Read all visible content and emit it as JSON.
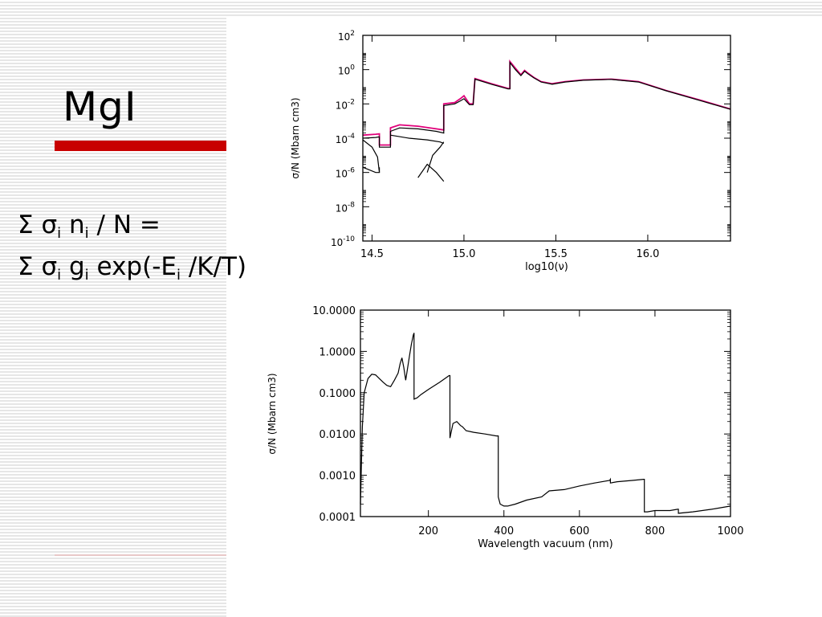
{
  "slide": {
    "title": "MgI",
    "formula": {
      "line1": {
        "sum": "Σ",
        "sigma": "σ",
        "sub1": "i",
        "n": "n",
        "sub2": "i",
        "rest": "/ N ="
      },
      "line2": {
        "sum": "Σ",
        "sigma": "σ",
        "sub1": "i",
        "g": "g",
        "sub2": "i",
        "exp": "exp(-E",
        "sub3": "i",
        "rest": "/K/T)"
      }
    },
    "colors": {
      "accent_bar": "#c80000",
      "curve_main": "#e0007a",
      "curve_dark": "#000000"
    }
  },
  "chart_data": [
    {
      "type": "line",
      "title": "",
      "xlabel": "log10(ν)",
      "ylabel": "σ/N (Mbarn cm3)",
      "xlim": [
        14.45,
        16.45
      ],
      "ylim": [
        1e-10,
        100
      ],
      "yscale": "log",
      "xticks": [
        14.5,
        15.0,
        15.5,
        16.0
      ],
      "xtick_labels": [
        "14.5",
        "15.0",
        "15.5",
        "16.0"
      ],
      "yticks": [
        1e-10,
        1e-08,
        1e-06,
        0.0001,
        0.01,
        1,
        100
      ],
      "ytick_labels": [
        {
          "base": "10",
          "exp": "-10"
        },
        {
          "base": "10",
          "exp": "-8"
        },
        {
          "base": "10",
          "exp": "-6"
        },
        {
          "base": "10",
          "exp": "-4"
        },
        {
          "base": "10",
          "exp": "-2"
        },
        {
          "base": "10",
          "exp": "0"
        },
        {
          "base": "10",
          "exp": "2"
        }
      ],
      "grid": false,
      "series": [
        {
          "color": "#e0007a",
          "x": [
            14.45,
            14.52,
            14.54,
            14.54,
            14.58,
            14.6,
            14.6,
            14.65,
            14.75,
            14.85,
            14.89,
            14.89,
            14.95,
            14.98,
            15.0,
            15.03,
            15.05,
            15.06,
            15.06,
            15.15,
            15.24,
            15.25,
            15.25,
            15.28,
            15.31,
            15.33,
            15.35,
            15.38,
            15.42,
            15.48,
            15.55,
            15.65,
            15.8,
            15.95,
            16.1,
            16.3,
            16.45
          ],
          "y": [
            0.00015,
            0.00017,
            0.00018,
            4e-05,
            4e-05,
            4e-05,
            0.0004,
            0.0006,
            0.0005,
            0.00035,
            0.0003,
            0.01,
            0.012,
            0.02,
            0.03,
            0.01,
            0.01,
            0.3,
            0.3,
            0.15,
            0.08,
            0.08,
            3.0,
            1.2,
            0.5,
            0.9,
            0.6,
            0.35,
            0.2,
            0.15,
            0.2,
            0.25,
            0.28,
            0.2,
            0.06,
            0.015,
            0.005
          ]
        },
        {
          "color": "#000000",
          "x": [
            14.45,
            14.52,
            14.54,
            14.54,
            14.58,
            14.6,
            14.6,
            14.65,
            14.75,
            14.85,
            14.89,
            14.89,
            14.95,
            14.98,
            15.0,
            15.03,
            15.05,
            15.06,
            15.06,
            15.15,
            15.24,
            15.25,
            15.25,
            15.28,
            15.31,
            15.33,
            15.35,
            15.38,
            15.42,
            15.48,
            15.55,
            15.65,
            15.8,
            15.95,
            16.1,
            16.3,
            16.45
          ],
          "y": [
            0.0001,
            0.00011,
            0.00012,
            3e-05,
            3e-05,
            3e-05,
            0.00025,
            0.0004,
            0.00035,
            0.00025,
            0.0002,
            0.008,
            0.01,
            0.015,
            0.02,
            0.009,
            0.009,
            0.28,
            0.28,
            0.14,
            0.075,
            0.075,
            2.6,
            1.0,
            0.45,
            0.8,
            0.55,
            0.33,
            0.19,
            0.14,
            0.19,
            0.24,
            0.27,
            0.19,
            0.058,
            0.014,
            0.0048
          ]
        },
        {
          "color": "#000000",
          "x": [
            14.45,
            14.5,
            14.53,
            14.54
          ],
          "y": [
            8e-05,
            3e-05,
            8e-06,
            1e-06
          ]
        },
        {
          "color": "#000000",
          "x": [
            14.45,
            14.52,
            14.54,
            14.54
          ],
          "y": [
            2e-06,
            1e-06,
            1e-06,
            2e-06
          ]
        },
        {
          "color": "#000000",
          "x": [
            14.6,
            14.7,
            14.8,
            14.87,
            14.89
          ],
          "y": [
            0.00015,
            0.0001,
            8e-05,
            6e-05,
            5e-05
          ]
        },
        {
          "color": "#000000",
          "x": [
            14.8,
            14.83,
            14.87,
            14.89
          ],
          "y": [
            1e-06,
            1e-05,
            3e-05,
            6e-05
          ]
        },
        {
          "color": "#000000",
          "x": [
            14.75,
            14.8,
            14.85,
            14.89
          ],
          "y": [
            5e-07,
            3e-06,
            1e-06,
            3e-07
          ]
        }
      ]
    },
    {
      "type": "line",
      "title": "",
      "xlabel": "Wavelength vacuum (nm)",
      "ylabel": "σ/N (Mbarn cm3)",
      "xlim": [
        20,
        1000
      ],
      "ylim": [
        0.0001,
        10
      ],
      "yscale": "log",
      "xticks": [
        200,
        400,
        600,
        800,
        1000
      ],
      "xtick_labels": [
        "200",
        "400",
        "600",
        "800",
        "1000"
      ],
      "yticks": [
        0.0001,
        0.001,
        0.01,
        0.1,
        1,
        10
      ],
      "ytick_labels": [
        "0.0001",
        "0.0010",
        "0.0100",
        "0.1000",
        "1.0000",
        "10.0000"
      ],
      "grid": false,
      "series": [
        {
          "color": "#000000",
          "x": [
            20,
            25,
            30,
            40,
            50,
            60,
            70,
            80,
            90,
            100,
            110,
            120,
            125,
            130,
            135,
            140,
            145,
            150,
            155,
            160,
            162,
            162,
            170,
            180,
            200,
            230,
            255,
            257,
            257,
            265,
            275,
            285,
            290,
            300,
            320,
            350,
            380,
            385,
            385,
            390,
            400,
            410,
            430,
            460,
            500,
            520,
            560,
            600,
            640,
            680,
            682,
            682,
            700,
            740,
            770,
            772,
            772,
            780,
            800,
            840,
            860,
            862,
            862,
            900,
            950,
            1000
          ],
          "y": [
            0.0002,
            0.015,
            0.1,
            0.22,
            0.28,
            0.27,
            0.22,
            0.18,
            0.15,
            0.14,
            0.2,
            0.3,
            0.5,
            0.7,
            0.4,
            0.2,
            0.4,
            0.8,
            1.5,
            2.5,
            2.8,
            0.07,
            0.075,
            0.09,
            0.12,
            0.18,
            0.26,
            0.26,
            0.008,
            0.018,
            0.02,
            0.016,
            0.015,
            0.012,
            0.011,
            0.01,
            0.009,
            0.009,
            0.0003,
            0.0002,
            0.00018,
            0.00018,
            0.0002,
            0.00025,
            0.0003,
            0.00042,
            0.00045,
            0.00055,
            0.00065,
            0.00075,
            0.0008,
            0.00065,
            0.0007,
            0.00075,
            0.0008,
            0.0008,
            0.00013,
            0.00013,
            0.00014,
            0.00014,
            0.00015,
            0.00015,
            0.00012,
            0.00013,
            0.00015,
            0.00018
          ]
        }
      ]
    }
  ]
}
